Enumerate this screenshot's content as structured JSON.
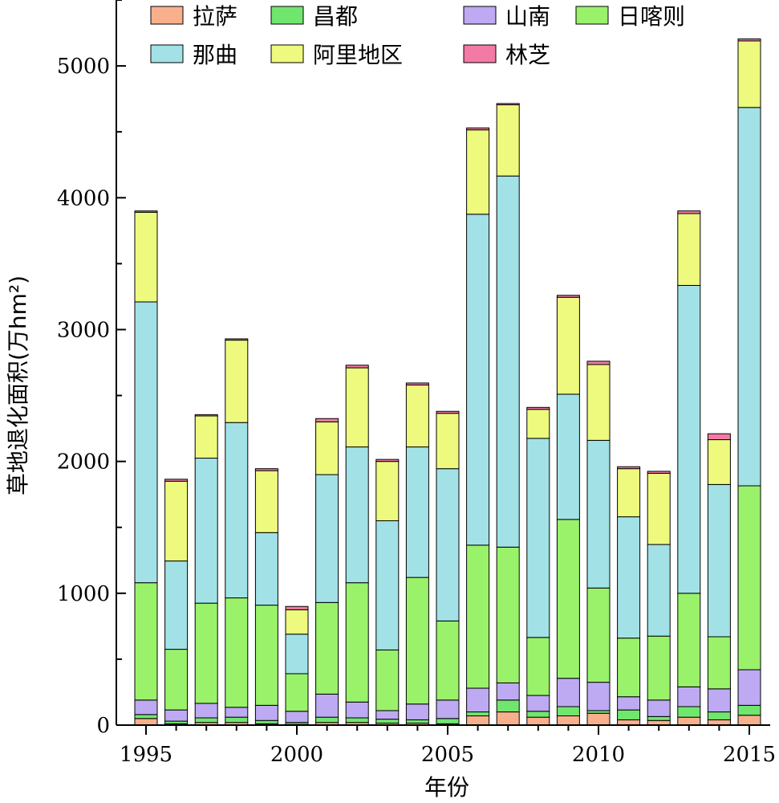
{
  "chart_data": {
    "type": "bar",
    "stacked": true,
    "xlabel": "年份",
    "ylabel": "草地退化面积(万hm²)",
    "ylim": [
      0,
      5500
    ],
    "yticks": [
      0,
      1000,
      2000,
      3000,
      4000,
      5000
    ],
    "xticks": [
      1995,
      2000,
      2005,
      2010,
      2015
    ],
    "legend_position": "top",
    "categories": [
      1995,
      1996,
      1997,
      1998,
      1999,
      2000,
      2001,
      2002,
      2003,
      2004,
      2005,
      2006,
      2007,
      2008,
      2009,
      2010,
      2011,
      2012,
      2013,
      2014,
      2015
    ],
    "series": [
      {
        "name": "拉萨",
        "color": "#f8b08c",
        "values": [
          50,
          10,
          20,
          20,
          10,
          5,
          20,
          20,
          15,
          15,
          10,
          70,
          100,
          60,
          70,
          90,
          40,
          35,
          60,
          40,
          75
        ]
      },
      {
        "name": "昌都",
        "color": "#71e66e",
        "values": [
          30,
          20,
          35,
          40,
          25,
          15,
          40,
          35,
          30,
          25,
          40,
          30,
          90,
          45,
          70,
          20,
          75,
          30,
          80,
          60,
          75
        ]
      },
      {
        "name": "山南",
        "color": "#bdaaf2",
        "values": [
          110,
          85,
          110,
          75,
          115,
          85,
          175,
          120,
          65,
          120,
          140,
          180,
          130,
          120,
          215,
          215,
          100,
          125,
          150,
          175,
          270
        ]
      },
      {
        "name": "日喀则",
        "color": "#9af26a",
        "values": [
          890,
          460,
          760,
          830,
          760,
          285,
          695,
          905,
          460,
          960,
          600,
          1085,
          1030,
          440,
          1205,
          715,
          445,
          485,
          710,
          395,
          1395
        ]
      },
      {
        "name": "那曲",
        "color": "#a2e2e6",
        "values": [
          2130,
          670,
          1100,
          1330,
          550,
          300,
          970,
          1030,
          980,
          990,
          1155,
          2510,
          2815,
          1510,
          950,
          1120,
          920,
          695,
          2335,
          1155,
          2870
        ]
      },
      {
        "name": "阿里地区",
        "color": "#eefa7d",
        "values": [
          680,
          605,
          320,
          625,
          470,
          185,
          400,
          600,
          450,
          470,
          420,
          640,
          540,
          220,
          735,
          575,
          365,
          540,
          545,
          340,
          505
        ]
      },
      {
        "name": "林芝",
        "color": "#f47aa6",
        "values": [
          10,
          15,
          10,
          10,
          15,
          25,
          25,
          20,
          15,
          15,
          15,
          15,
          10,
          15,
          15,
          25,
          15,
          15,
          20,
          45,
          15
        ]
      }
    ]
  }
}
